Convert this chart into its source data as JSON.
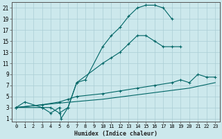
{
  "title": "",
  "xlabel": "Humidex (Indice chaleur)",
  "bg_color": "#cce8ec",
  "grid_color": "#aacdd4",
  "line_color": "#006666",
  "xlim": [
    -0.5,
    23.5
  ],
  "ylim": [
    0.5,
    22
  ],
  "xticks": [
    0,
    1,
    2,
    3,
    4,
    5,
    6,
    7,
    8,
    9,
    10,
    11,
    12,
    13,
    14,
    15,
    16,
    17,
    18,
    19,
    20,
    21,
    22,
    23
  ],
  "yticks": [
    1,
    3,
    5,
    7,
    9,
    11,
    13,
    15,
    17,
    19,
    21
  ],
  "series": [
    {
      "x": [
        0,
        1,
        3,
        4,
        5,
        6,
        7,
        8,
        10,
        11,
        12,
        13,
        14,
        15,
        16,
        17,
        18
      ],
      "y": [
        3,
        4,
        3,
        3,
        2,
        3,
        7.5,
        8,
        14,
        16,
        17.5,
        19.5,
        21,
        21.5,
        21.5,
        21,
        19
      ],
      "marker": "+"
    },
    {
      "x": [
        0,
        3,
        4,
        5,
        5.2,
        6,
        7,
        10,
        11,
        12,
        13,
        14,
        15,
        16,
        17,
        18,
        19
      ],
      "y": [
        3,
        3,
        2,
        3,
        1,
        3,
        7.5,
        11,
        12,
        13,
        14.5,
        16,
        16,
        15,
        14,
        14,
        14
      ],
      "marker": "+"
    },
    {
      "x": [
        0,
        3,
        5,
        6,
        7,
        10,
        12,
        14,
        16,
        18,
        19,
        20,
        21,
        22,
        23
      ],
      "y": [
        3,
        3.5,
        4,
        4.5,
        5,
        5.5,
        6,
        6.5,
        7,
        7.5,
        8,
        7.5,
        9,
        8.5,
        8.5
      ],
      "marker": "+"
    },
    {
      "x": [
        0,
        5,
        10,
        15,
        20,
        23
      ],
      "y": [
        3,
        3.8,
        4.5,
        5.5,
        6.5,
        7.5
      ],
      "marker": null
    }
  ]
}
